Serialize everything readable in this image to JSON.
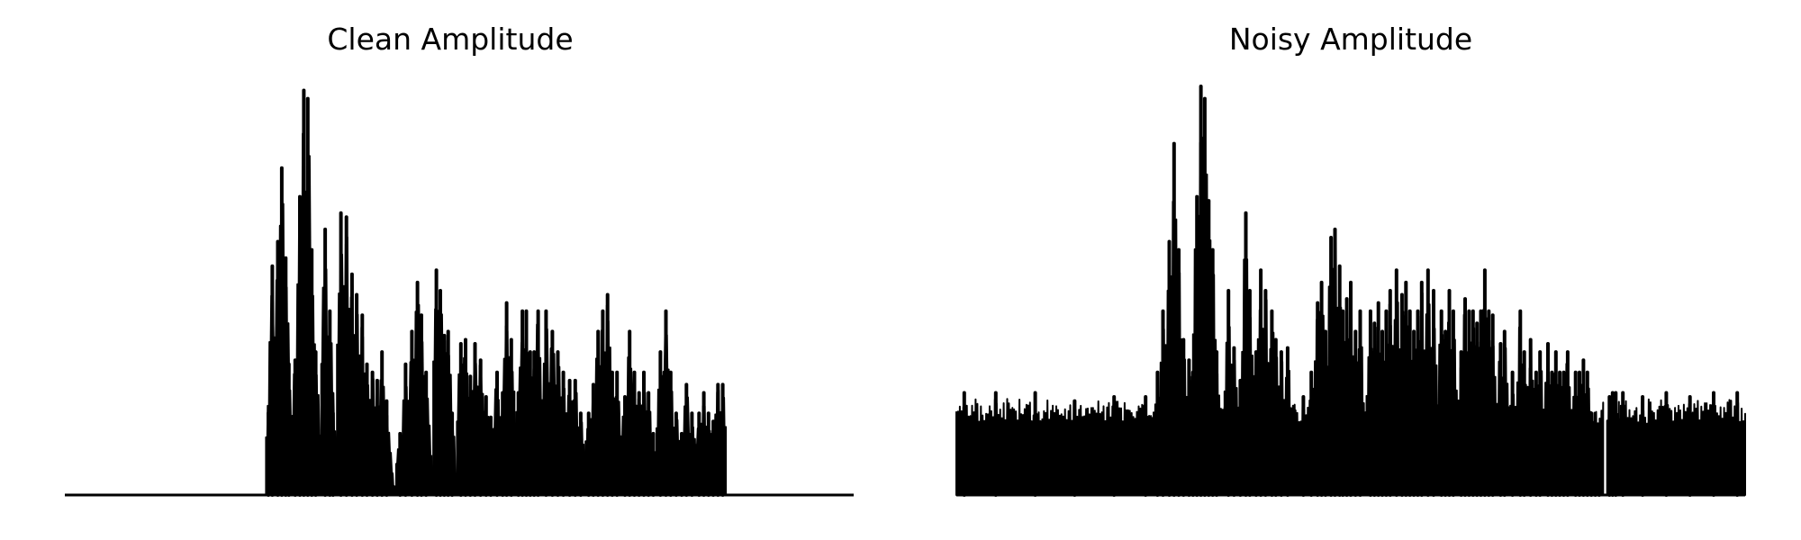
{
  "chart_data": [
    {
      "type": "area",
      "title": "Clean Amplitude",
      "xlabel": "",
      "ylabel": "",
      "axes_visible": false,
      "grid": false,
      "xlim": [
        0,
        1
      ],
      "ylim": [
        0,
        1
      ],
      "color": "#000000",
      "fill": "#000000",
      "noise_floor": 0.0,
      "segments": [
        {
          "start": 0.255,
          "end": 0.288,
          "peaks": [
            [
              0.258,
              0.2
            ],
            [
              0.263,
              0.56
            ],
            [
              0.27,
              0.62
            ],
            [
              0.275,
              0.8
            ],
            [
              0.28,
              0.58
            ],
            [
              0.284,
              0.32
            ]
          ]
        },
        {
          "start": 0.288,
          "end": 0.325,
          "peaks": [
            [
              0.292,
              0.33
            ],
            [
              0.298,
              0.73
            ],
            [
              0.303,
              0.99
            ],
            [
              0.308,
              0.97
            ],
            [
              0.313,
              0.6
            ],
            [
              0.318,
              0.35
            ]
          ]
        },
        {
          "start": 0.325,
          "end": 0.345,
          "peaks": [
            [
              0.33,
              0.65
            ],
            [
              0.336,
              0.45
            ],
            [
              0.34,
              0.2
            ]
          ]
        },
        {
          "start": 0.345,
          "end": 0.42,
          "peaks": [
            [
              0.35,
              0.69
            ],
            [
              0.357,
              0.68
            ],
            [
              0.364,
              0.54
            ],
            [
              0.37,
              0.49
            ],
            [
              0.377,
              0.44
            ],
            [
              0.383,
              0.32
            ],
            [
              0.39,
              0.3
            ],
            [
              0.396,
              0.28
            ],
            [
              0.402,
              0.35
            ],
            [
              0.408,
              0.23
            ]
          ]
        },
        {
          "start": 0.42,
          "end": 0.467,
          "peaks": [
            [
              0.425,
              0.15
            ],
            [
              0.432,
              0.32
            ],
            [
              0.44,
              0.4
            ],
            [
              0.447,
              0.52
            ],
            [
              0.452,
              0.44
            ],
            [
              0.458,
              0.3
            ]
          ]
        },
        {
          "start": 0.467,
          "end": 0.495,
          "peaks": [
            [
              0.471,
              0.55
            ],
            [
              0.476,
              0.5
            ],
            [
              0.481,
              0.39
            ],
            [
              0.486,
              0.4
            ],
            [
              0.491,
              0.2
            ]
          ]
        },
        {
          "start": 0.497,
          "end": 0.57,
          "peaks": [
            [
              0.502,
              0.37
            ],
            [
              0.508,
              0.38
            ],
            [
              0.514,
              0.29
            ],
            [
              0.52,
              0.37
            ],
            [
              0.527,
              0.33
            ],
            [
              0.534,
              0.24
            ],
            [
              0.54,
              0.19
            ],
            [
              0.548,
              0.3
            ],
            [
              0.555,
              0.25
            ],
            [
              0.56,
              0.47
            ],
            [
              0.566,
              0.38
            ]
          ]
        },
        {
          "start": 0.57,
          "end": 0.605,
          "peaks": [
            [
              0.575,
              0.25
            ],
            [
              0.58,
              0.45
            ],
            [
              0.585,
              0.45
            ],
            [
              0.59,
              0.35
            ],
            [
              0.595,
              0.35
            ],
            [
              0.6,
              0.45
            ]
          ]
        },
        {
          "start": 0.605,
          "end": 0.66,
          "peaks": [
            [
              0.61,
              0.45
            ],
            [
              0.618,
              0.4
            ],
            [
              0.625,
              0.35
            ],
            [
              0.632,
              0.3
            ],
            [
              0.64,
              0.28
            ],
            [
              0.647,
              0.28
            ],
            [
              0.654,
              0.2
            ]
          ]
        },
        {
          "start": 0.66,
          "end": 0.705,
          "peaks": [
            [
              0.664,
              0.2
            ],
            [
              0.67,
              0.27
            ],
            [
              0.676,
              0.4
            ],
            [
              0.682,
              0.45
            ],
            [
              0.688,
              0.49
            ],
            [
              0.694,
              0.3
            ],
            [
              0.7,
              0.3
            ]
          ]
        },
        {
          "start": 0.705,
          "end": 0.75,
          "peaks": [
            [
              0.71,
              0.24
            ],
            [
              0.716,
              0.4
            ],
            [
              0.722,
              0.3
            ],
            [
              0.728,
              0.25
            ],
            [
              0.734,
              0.3
            ],
            [
              0.74,
              0.25
            ],
            [
              0.746,
              0.15
            ]
          ]
        },
        {
          "start": 0.75,
          "end": 0.8,
          "peaks": [
            [
              0.755,
              0.35
            ],
            [
              0.762,
              0.45
            ],
            [
              0.768,
              0.3
            ],
            [
              0.775,
              0.2
            ],
            [
              0.782,
              0.15
            ],
            [
              0.788,
              0.27
            ],
            [
              0.795,
              0.2
            ]
          ]
        },
        {
          "start": 0.8,
          "end": 0.838,
          "peaks": [
            [
              0.804,
              0.2
            ],
            [
              0.81,
              0.25
            ],
            [
              0.816,
              0.2
            ],
            [
              0.822,
              0.18
            ],
            [
              0.828,
              0.27
            ],
            [
              0.834,
              0.27
            ]
          ]
        }
      ]
    },
    {
      "type": "area",
      "title": "Noisy Amplitude",
      "xlabel": "",
      "ylabel": "",
      "axes_visible": false,
      "grid": false,
      "xlim": [
        0,
        1
      ],
      "ylim": [
        0,
        1
      ],
      "color": "#000000",
      "fill": "#000000",
      "noise_floor": 0.24,
      "segments": [
        {
          "start": 0.0,
          "end": 0.25,
          "peaks": [
            [
              0.01,
              0.25
            ],
            [
              0.05,
              0.25
            ],
            [
              0.1,
              0.25
            ],
            [
              0.15,
              0.23
            ],
            [
              0.2,
              0.24
            ],
            [
              0.24,
              0.24
            ]
          ]
        },
        {
          "start": 0.25,
          "end": 0.31,
          "peaks": [
            [
              0.255,
              0.3
            ],
            [
              0.262,
              0.45
            ],
            [
              0.27,
              0.62
            ],
            [
              0.276,
              0.86
            ],
            [
              0.282,
              0.6
            ],
            [
              0.288,
              0.38
            ],
            [
              0.295,
              0.33
            ],
            [
              0.3,
              0.3
            ]
          ]
        },
        {
          "start": 0.3,
          "end": 0.34,
          "peaks": [
            [
              0.305,
              0.73
            ],
            [
              0.31,
              1.0
            ],
            [
              0.315,
              0.97
            ],
            [
              0.32,
              0.72
            ],
            [
              0.325,
              0.6
            ],
            [
              0.33,
              0.35
            ]
          ]
        },
        {
          "start": 0.34,
          "end": 0.43,
          "peaks": [
            [
              0.345,
              0.5
            ],
            [
              0.352,
              0.36
            ],
            [
              0.36,
              0.28
            ],
            [
              0.367,
              0.69
            ],
            [
              0.372,
              0.5
            ],
            [
              0.38,
              0.35
            ],
            [
              0.386,
              0.55
            ],
            [
              0.392,
              0.5
            ],
            [
              0.4,
              0.45
            ],
            [
              0.405,
              0.38
            ],
            [
              0.412,
              0.35
            ],
            [
              0.42,
              0.36
            ]
          ]
        },
        {
          "start": 0.43,
          "end": 0.47,
          "peaks": [
            [
              0.44,
              0.24
            ],
            [
              0.45,
              0.3
            ],
            [
              0.458,
              0.47
            ],
            [
              0.463,
              0.52
            ],
            [
              0.468,
              0.4
            ]
          ]
        },
        {
          "start": 0.47,
          "end": 0.52,
          "peaks": [
            [
              0.475,
              0.63
            ],
            [
              0.48,
              0.65
            ],
            [
              0.486,
              0.56
            ],
            [
              0.49,
              0.45
            ],
            [
              0.495,
              0.48
            ],
            [
              0.5,
              0.52
            ],
            [
              0.506,
              0.4
            ],
            [
              0.512,
              0.45
            ]
          ]
        },
        {
          "start": 0.52,
          "end": 0.61,
          "peaks": [
            [
              0.525,
              0.45
            ],
            [
              0.53,
              0.42
            ],
            [
              0.535,
              0.47
            ],
            [
              0.54,
              0.4
            ],
            [
              0.545,
              0.45
            ],
            [
              0.55,
              0.5
            ],
            [
              0.558,
              0.55
            ],
            [
              0.565,
              0.49
            ],
            [
              0.57,
              0.52
            ],
            [
              0.575,
              0.45
            ],
            [
              0.58,
              0.4
            ],
            [
              0.585,
              0.45
            ],
            [
              0.59,
              0.52
            ],
            [
              0.598,
              0.55
            ],
            [
              0.605,
              0.5
            ]
          ]
        },
        {
          "start": 0.61,
          "end": 0.7,
          "peaks": [
            [
              0.615,
              0.45
            ],
            [
              0.62,
              0.4
            ],
            [
              0.625,
              0.5
            ],
            [
              0.63,
              0.45
            ],
            [
              0.64,
              0.35
            ],
            [
              0.645,
              0.48
            ],
            [
              0.65,
              0.45
            ],
            [
              0.655,
              0.45
            ],
            [
              0.66,
              0.42
            ],
            [
              0.665,
              0.45
            ],
            [
              0.67,
              0.55
            ],
            [
              0.675,
              0.45
            ],
            [
              0.68,
              0.44
            ],
            [
              0.69,
              0.37
            ],
            [
              0.695,
              0.4
            ]
          ]
        },
        {
          "start": 0.7,
          "end": 0.78,
          "peaks": [
            [
              0.705,
              0.3
            ],
            [
              0.715,
              0.45
            ],
            [
              0.72,
              0.35
            ],
            [
              0.728,
              0.38
            ],
            [
              0.735,
              0.3
            ],
            [
              0.74,
              0.35
            ],
            [
              0.75,
              0.37
            ],
            [
              0.755,
              0.3
            ],
            [
              0.76,
              0.35
            ],
            [
              0.765,
              0.3
            ],
            [
              0.77,
              0.3
            ],
            [
              0.775,
              0.35
            ]
          ]
        },
        {
          "start": 0.78,
          "end": 0.82,
          "peaks": [
            [
              0.785,
              0.3
            ],
            [
              0.79,
              0.3
            ],
            [
              0.795,
              0.33
            ],
            [
              0.8,
              0.3
            ],
            [
              0.805,
              0.2
            ],
            [
              0.81,
              0.15
            ],
            [
              0.815,
              0.05
            ]
          ]
        },
        {
          "start": 0.825,
          "end": 0.84,
          "peaks": [
            [
              0.828,
              0.24
            ],
            [
              0.832,
              0.25
            ],
            [
              0.836,
              0.25
            ]
          ]
        },
        {
          "start": 0.84,
          "end": 1.0,
          "peaks": [
            [
              0.845,
              0.25
            ],
            [
              0.87,
              0.24
            ],
            [
              0.9,
              0.25
            ],
            [
              0.93,
              0.24
            ],
            [
              0.96,
              0.25
            ],
            [
              0.99,
              0.25
            ]
          ]
        }
      ]
    }
  ]
}
